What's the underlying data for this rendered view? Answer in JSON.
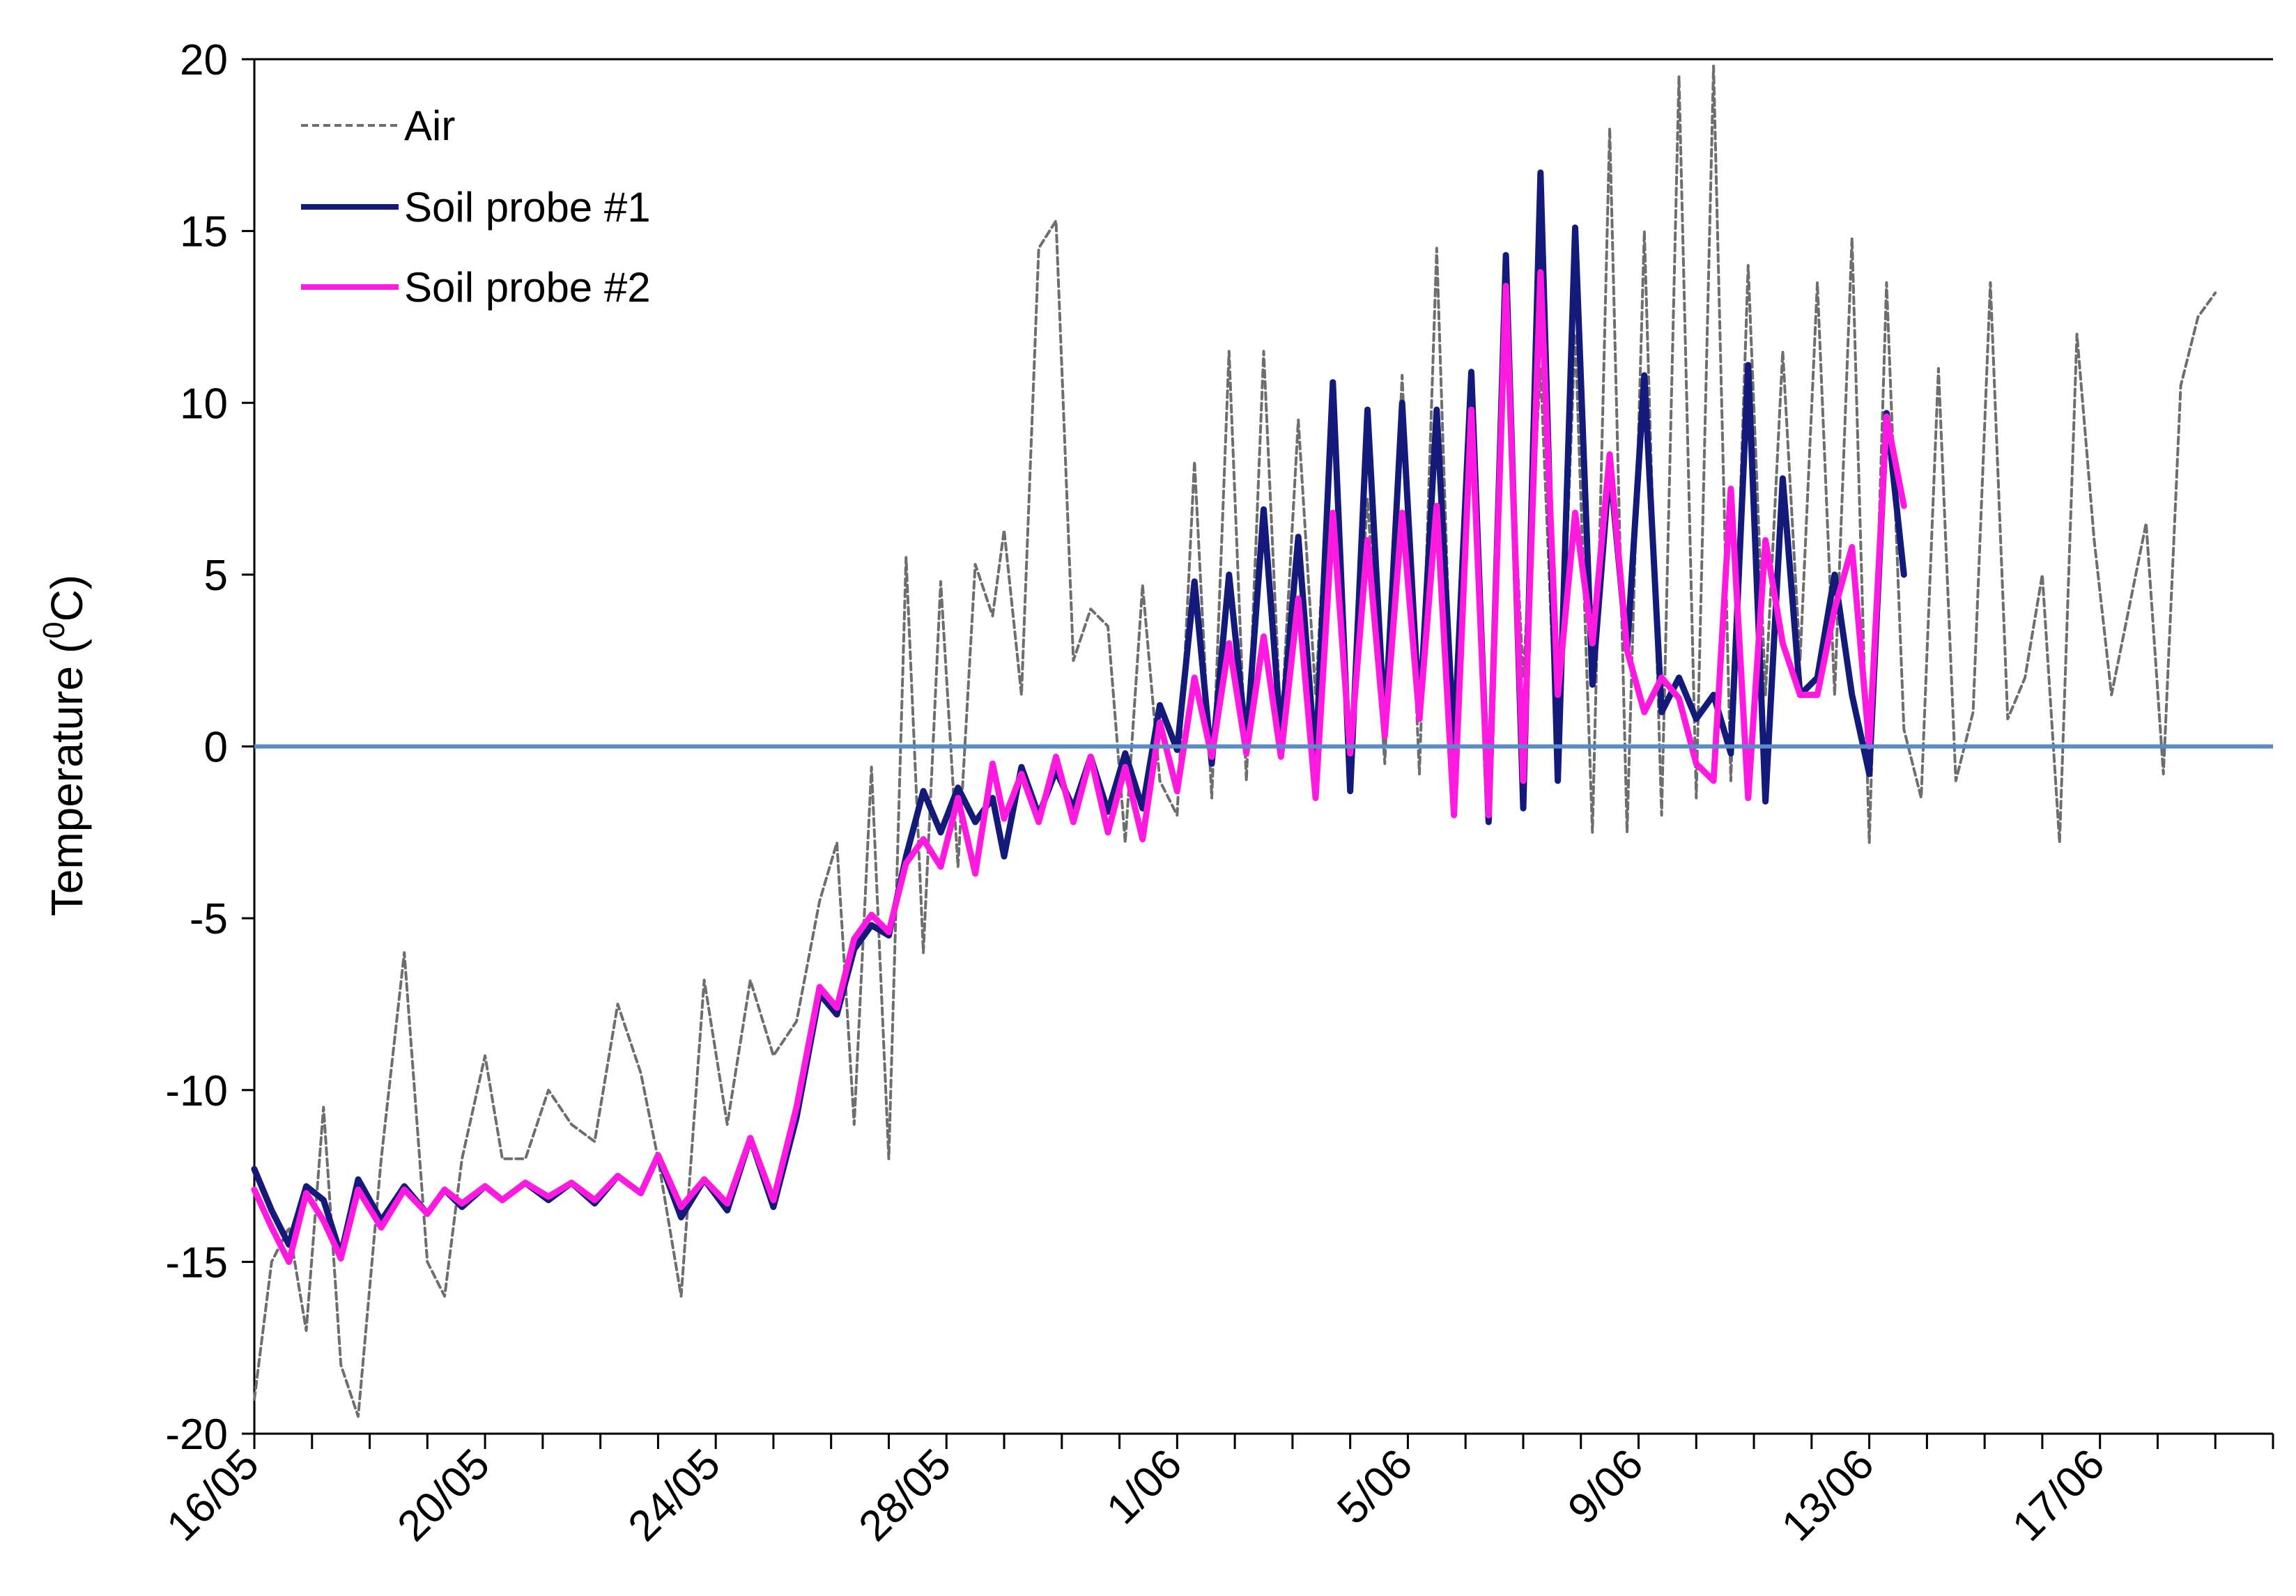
{
  "chart_data": {
    "type": "line",
    "title": "",
    "xlabel": "",
    "ylabel": "Temperature (",
    "ylabel_sup": "0",
    "ylabel_unit": "C)",
    "ylim": [
      -20,
      20
    ],
    "yticks": [
      20,
      15,
      10,
      5,
      0,
      -5,
      -10,
      -15,
      -20
    ],
    "x_unit": "day",
    "x_start_label": "16/05",
    "xlim": [
      0,
      35
    ],
    "xticks": [
      {
        "day": 0,
        "label": "16/05"
      },
      {
        "day": 4,
        "label": "20/05"
      },
      {
        "day": 8,
        "label": "24/05"
      },
      {
        "day": 12,
        "label": "28/05"
      },
      {
        "day": 16,
        "label": "1/06"
      },
      {
        "day": 20,
        "label": "5/06"
      },
      {
        "day": 24,
        "label": "9/06"
      },
      {
        "day": 28,
        "label": "13/06"
      },
      {
        "day": 32,
        "label": "17/06"
      }
    ],
    "reference_line": {
      "y": 0,
      "color": "#5b8ac6"
    },
    "legend_position": "top-left",
    "series": [
      {
        "name": "Air",
        "color": "#6e6e6e",
        "style": "dashed",
        "points": [
          [
            0,
            -19
          ],
          [
            0.3,
            -15
          ],
          [
            0.6,
            -14
          ],
          [
            0.9,
            -17
          ],
          [
            1.2,
            -10.5
          ],
          [
            1.5,
            -18
          ],
          [
            1.8,
            -19.5
          ],
          [
            2.2,
            -12
          ],
          [
            2.6,
            -6
          ],
          [
            3.0,
            -15
          ],
          [
            3.3,
            -16
          ],
          [
            3.6,
            -12
          ],
          [
            4.0,
            -9
          ],
          [
            4.3,
            -12
          ],
          [
            4.7,
            -12
          ],
          [
            5.1,
            -10
          ],
          [
            5.5,
            -11
          ],
          [
            5.9,
            -11.5
          ],
          [
            6.3,
            -7.5
          ],
          [
            6.7,
            -9.5
          ],
          [
            7.0,
            -12
          ],
          [
            7.4,
            -16
          ],
          [
            7.8,
            -6.8
          ],
          [
            8.2,
            -11
          ],
          [
            8.6,
            -6.8
          ],
          [
            9.0,
            -9
          ],
          [
            9.4,
            -8
          ],
          [
            9.8,
            -4.5
          ],
          [
            10.1,
            -2.8
          ],
          [
            10.4,
            -11
          ],
          [
            10.7,
            -0.6
          ],
          [
            11.0,
            -12
          ],
          [
            11.3,
            5.5
          ],
          [
            11.6,
            -6
          ],
          [
            11.9,
            4.8
          ],
          [
            12.2,
            -3.5
          ],
          [
            12.5,
            5.3
          ],
          [
            12.8,
            3.8
          ],
          [
            13.0,
            6.3
          ],
          [
            13.3,
            1.5
          ],
          [
            13.6,
            14.5
          ],
          [
            13.9,
            15.3
          ],
          [
            14.2,
            2.5
          ],
          [
            14.5,
            4
          ],
          [
            14.8,
            3.5
          ],
          [
            15.1,
            -2.8
          ],
          [
            15.4,
            4.7
          ],
          [
            15.7,
            -1
          ],
          [
            16.0,
            -2
          ],
          [
            16.3,
            8.3
          ],
          [
            16.6,
            -1.5
          ],
          [
            16.9,
            11.5
          ],
          [
            17.2,
            -1
          ],
          [
            17.5,
            11.5
          ],
          [
            17.8,
            0.5
          ],
          [
            18.1,
            9.5
          ],
          [
            18.4,
            1.5
          ],
          [
            18.7,
            10.4
          ],
          [
            19.0,
            -0.5
          ],
          [
            19.3,
            7.2
          ],
          [
            19.6,
            -0.5
          ],
          [
            19.9,
            10.8
          ],
          [
            20.2,
            -0.8
          ],
          [
            20.5,
            14.5
          ],
          [
            20.8,
            -1
          ],
          [
            21.1,
            10
          ],
          [
            21.4,
            -0.5
          ],
          [
            21.7,
            12
          ],
          [
            22.0,
            2
          ],
          [
            22.3,
            11
          ],
          [
            22.6,
            -1
          ],
          [
            22.9,
            12
          ],
          [
            23.2,
            -2.5
          ],
          [
            23.5,
            18
          ],
          [
            23.8,
            -2.5
          ],
          [
            24.1,
            15
          ],
          [
            24.4,
            -2
          ],
          [
            24.7,
            19.5
          ],
          [
            25.0,
            -1.5
          ],
          [
            25.3,
            19.8
          ],
          [
            25.6,
            -1
          ],
          [
            25.9,
            14
          ],
          [
            26.2,
            1.5
          ],
          [
            26.5,
            11.5
          ],
          [
            26.8,
            2.5
          ],
          [
            27.1,
            13.5
          ],
          [
            27.4,
            1.5
          ],
          [
            27.7,
            14.8
          ],
          [
            28.0,
            -2.8
          ],
          [
            28.3,
            13.5
          ],
          [
            28.6,
            0.5
          ],
          [
            28.9,
            -1.5
          ],
          [
            29.2,
            11
          ],
          [
            29.5,
            -1
          ],
          [
            29.8,
            1
          ],
          [
            30.1,
            13.5
          ],
          [
            30.4,
            0.8
          ],
          [
            30.7,
            2
          ],
          [
            31.0,
            5
          ],
          [
            31.3,
            -2.8
          ],
          [
            31.6,
            12
          ],
          [
            31.9,
            6
          ],
          [
            32.2,
            1.5
          ],
          [
            32.5,
            4
          ],
          [
            32.8,
            6.5
          ],
          [
            33.1,
            -0.8
          ],
          [
            33.4,
            10.5
          ],
          [
            33.7,
            12.5
          ],
          [
            34.0,
            13.2
          ]
        ]
      },
      {
        "name": "Soil probe #1",
        "color": "#141a7a",
        "style": "solid",
        "points": [
          [
            0,
            -12.3
          ],
          [
            0.3,
            -13.5
          ],
          [
            0.6,
            -14.5
          ],
          [
            0.9,
            -12.8
          ],
          [
            1.2,
            -13.2
          ],
          [
            1.5,
            -14.8
          ],
          [
            1.8,
            -12.6
          ],
          [
            2.2,
            -13.8
          ],
          [
            2.6,
            -12.8
          ],
          [
            3.0,
            -13.6
          ],
          [
            3.3,
            -12.9
          ],
          [
            3.6,
            -13.4
          ],
          [
            4.0,
            -12.8
          ],
          [
            4.3,
            -13.2
          ],
          [
            4.7,
            -12.7
          ],
          [
            5.1,
            -13.2
          ],
          [
            5.5,
            -12.7
          ],
          [
            5.9,
            -13.3
          ],
          [
            6.3,
            -12.5
          ],
          [
            6.7,
            -13.0
          ],
          [
            7.0,
            -11.9
          ],
          [
            7.4,
            -13.7
          ],
          [
            7.8,
            -12.6
          ],
          [
            8.2,
            -13.5
          ],
          [
            8.6,
            -11.4
          ],
          [
            9.0,
            -13.4
          ],
          [
            9.4,
            -10.8
          ],
          [
            9.8,
            -7.2
          ],
          [
            10.1,
            -7.8
          ],
          [
            10.4,
            -5.9
          ],
          [
            10.7,
            -5.2
          ],
          [
            11.0,
            -5.5
          ],
          [
            11.3,
            -3.2
          ],
          [
            11.6,
            -1.3
          ],
          [
            11.9,
            -2.5
          ],
          [
            12.2,
            -1.2
          ],
          [
            12.5,
            -2.2
          ],
          [
            12.8,
            -1.5
          ],
          [
            13.0,
            -3.2
          ],
          [
            13.3,
            -0.6
          ],
          [
            13.6,
            -2.0
          ],
          [
            13.9,
            -0.7
          ],
          [
            14.2,
            -1.8
          ],
          [
            14.5,
            -0.3
          ],
          [
            14.8,
            -1.9
          ],
          [
            15.1,
            -0.2
          ],
          [
            15.4,
            -1.8
          ],
          [
            15.7,
            1.2
          ],
          [
            16.0,
            -0.1
          ],
          [
            16.3,
            4.8
          ],
          [
            16.6,
            -0.5
          ],
          [
            16.9,
            5.0
          ],
          [
            17.2,
            0.1
          ],
          [
            17.5,
            6.9
          ],
          [
            17.8,
            0.3
          ],
          [
            18.1,
            6.1
          ],
          [
            18.4,
            -0.5
          ],
          [
            18.7,
            10.6
          ],
          [
            19.0,
            -1.3
          ],
          [
            19.3,
            9.8
          ],
          [
            19.6,
            0.5
          ],
          [
            19.9,
            10.0
          ],
          [
            20.2,
            0.8
          ],
          [
            20.5,
            9.8
          ],
          [
            20.8,
            0.0
          ],
          [
            21.1,
            10.9
          ],
          [
            21.4,
            -2.2
          ],
          [
            21.7,
            14.3
          ],
          [
            22.0,
            -1.8
          ],
          [
            22.3,
            16.7
          ],
          [
            22.6,
            -1.0
          ],
          [
            22.9,
            15.1
          ],
          [
            23.2,
            1.8
          ],
          [
            23.5,
            8.2
          ],
          [
            23.8,
            2.8
          ],
          [
            24.1,
            10.8
          ],
          [
            24.4,
            1.0
          ],
          [
            24.7,
            2.0
          ],
          [
            25.0,
            0.8
          ],
          [
            25.3,
            1.5
          ],
          [
            25.6,
            -0.2
          ],
          [
            25.9,
            11.1
          ],
          [
            26.2,
            -1.6
          ],
          [
            26.5,
            7.8
          ],
          [
            26.8,
            1.5
          ],
          [
            27.1,
            2.0
          ],
          [
            27.4,
            5.0
          ],
          [
            27.7,
            1.5
          ],
          [
            28.0,
            -0.8
          ],
          [
            28.3,
            9.7
          ],
          [
            28.6,
            5.0
          ]
        ]
      },
      {
        "name": "Soil probe #2",
        "color": "#ff1ae0",
        "style": "solid",
        "points": [
          [
            0,
            -12.9
          ],
          [
            0.3,
            -14.0
          ],
          [
            0.6,
            -15.0
          ],
          [
            0.9,
            -13.0
          ],
          [
            1.2,
            -13.8
          ],
          [
            1.5,
            -14.9
          ],
          [
            1.8,
            -12.9
          ],
          [
            2.2,
            -14.0
          ],
          [
            2.6,
            -12.9
          ],
          [
            3.0,
            -13.6
          ],
          [
            3.3,
            -12.9
          ],
          [
            3.6,
            -13.3
          ],
          [
            4.0,
            -12.8
          ],
          [
            4.3,
            -13.2
          ],
          [
            4.7,
            -12.7
          ],
          [
            5.1,
            -13.1
          ],
          [
            5.5,
            -12.7
          ],
          [
            5.9,
            -13.2
          ],
          [
            6.3,
            -12.5
          ],
          [
            6.7,
            -13.0
          ],
          [
            7.0,
            -11.9
          ],
          [
            7.4,
            -13.4
          ],
          [
            7.8,
            -12.6
          ],
          [
            8.2,
            -13.3
          ],
          [
            8.6,
            -11.4
          ],
          [
            9.0,
            -13.2
          ],
          [
            9.4,
            -10.5
          ],
          [
            9.8,
            -7.0
          ],
          [
            10.1,
            -7.6
          ],
          [
            10.4,
            -5.6
          ],
          [
            10.7,
            -4.9
          ],
          [
            11.0,
            -5.4
          ],
          [
            11.3,
            -3.4
          ],
          [
            11.6,
            -2.7
          ],
          [
            11.9,
            -3.5
          ],
          [
            12.2,
            -1.5
          ],
          [
            12.5,
            -3.7
          ],
          [
            12.8,
            -0.5
          ],
          [
            13.0,
            -2.1
          ],
          [
            13.3,
            -0.8
          ],
          [
            13.6,
            -2.2
          ],
          [
            13.9,
            -0.3
          ],
          [
            14.2,
            -2.2
          ],
          [
            14.5,
            -0.3
          ],
          [
            14.8,
            -2.5
          ],
          [
            15.1,
            -0.6
          ],
          [
            15.4,
            -2.7
          ],
          [
            15.7,
            0.7
          ],
          [
            16.0,
            -1.3
          ],
          [
            16.3,
            2.0
          ],
          [
            16.6,
            -0.3
          ],
          [
            16.9,
            3.0
          ],
          [
            17.2,
            -0.2
          ],
          [
            17.5,
            3.2
          ],
          [
            17.8,
            -0.3
          ],
          [
            18.1,
            4.3
          ],
          [
            18.4,
            -1.5
          ],
          [
            18.7,
            6.8
          ],
          [
            19.0,
            -0.2
          ],
          [
            19.3,
            6.0
          ],
          [
            19.6,
            0.3
          ],
          [
            19.9,
            6.8
          ],
          [
            20.2,
            0.8
          ],
          [
            20.5,
            7.0
          ],
          [
            20.8,
            -2.0
          ],
          [
            21.1,
            9.8
          ],
          [
            21.4,
            -2.0
          ],
          [
            21.7,
            13.4
          ],
          [
            22.0,
            -1.0
          ],
          [
            22.3,
            13.8
          ],
          [
            22.6,
            1.5
          ],
          [
            22.9,
            6.8
          ],
          [
            23.2,
            3.0
          ],
          [
            23.5,
            8.5
          ],
          [
            23.8,
            2.8
          ],
          [
            24.1,
            1.0
          ],
          [
            24.4,
            2.0
          ],
          [
            24.7,
            1.4
          ],
          [
            25.0,
            -0.5
          ],
          [
            25.3,
            -1.0
          ],
          [
            25.6,
            7.5
          ],
          [
            25.9,
            -1.5
          ],
          [
            26.2,
            6.0
          ],
          [
            26.5,
            3.0
          ],
          [
            26.8,
            1.5
          ],
          [
            27.1,
            1.5
          ],
          [
            27.4,
            4.0
          ],
          [
            27.7,
            5.8
          ],
          [
            28.0,
            0.0
          ],
          [
            28.3,
            9.6
          ],
          [
            28.6,
            7.0
          ]
        ]
      }
    ]
  }
}
